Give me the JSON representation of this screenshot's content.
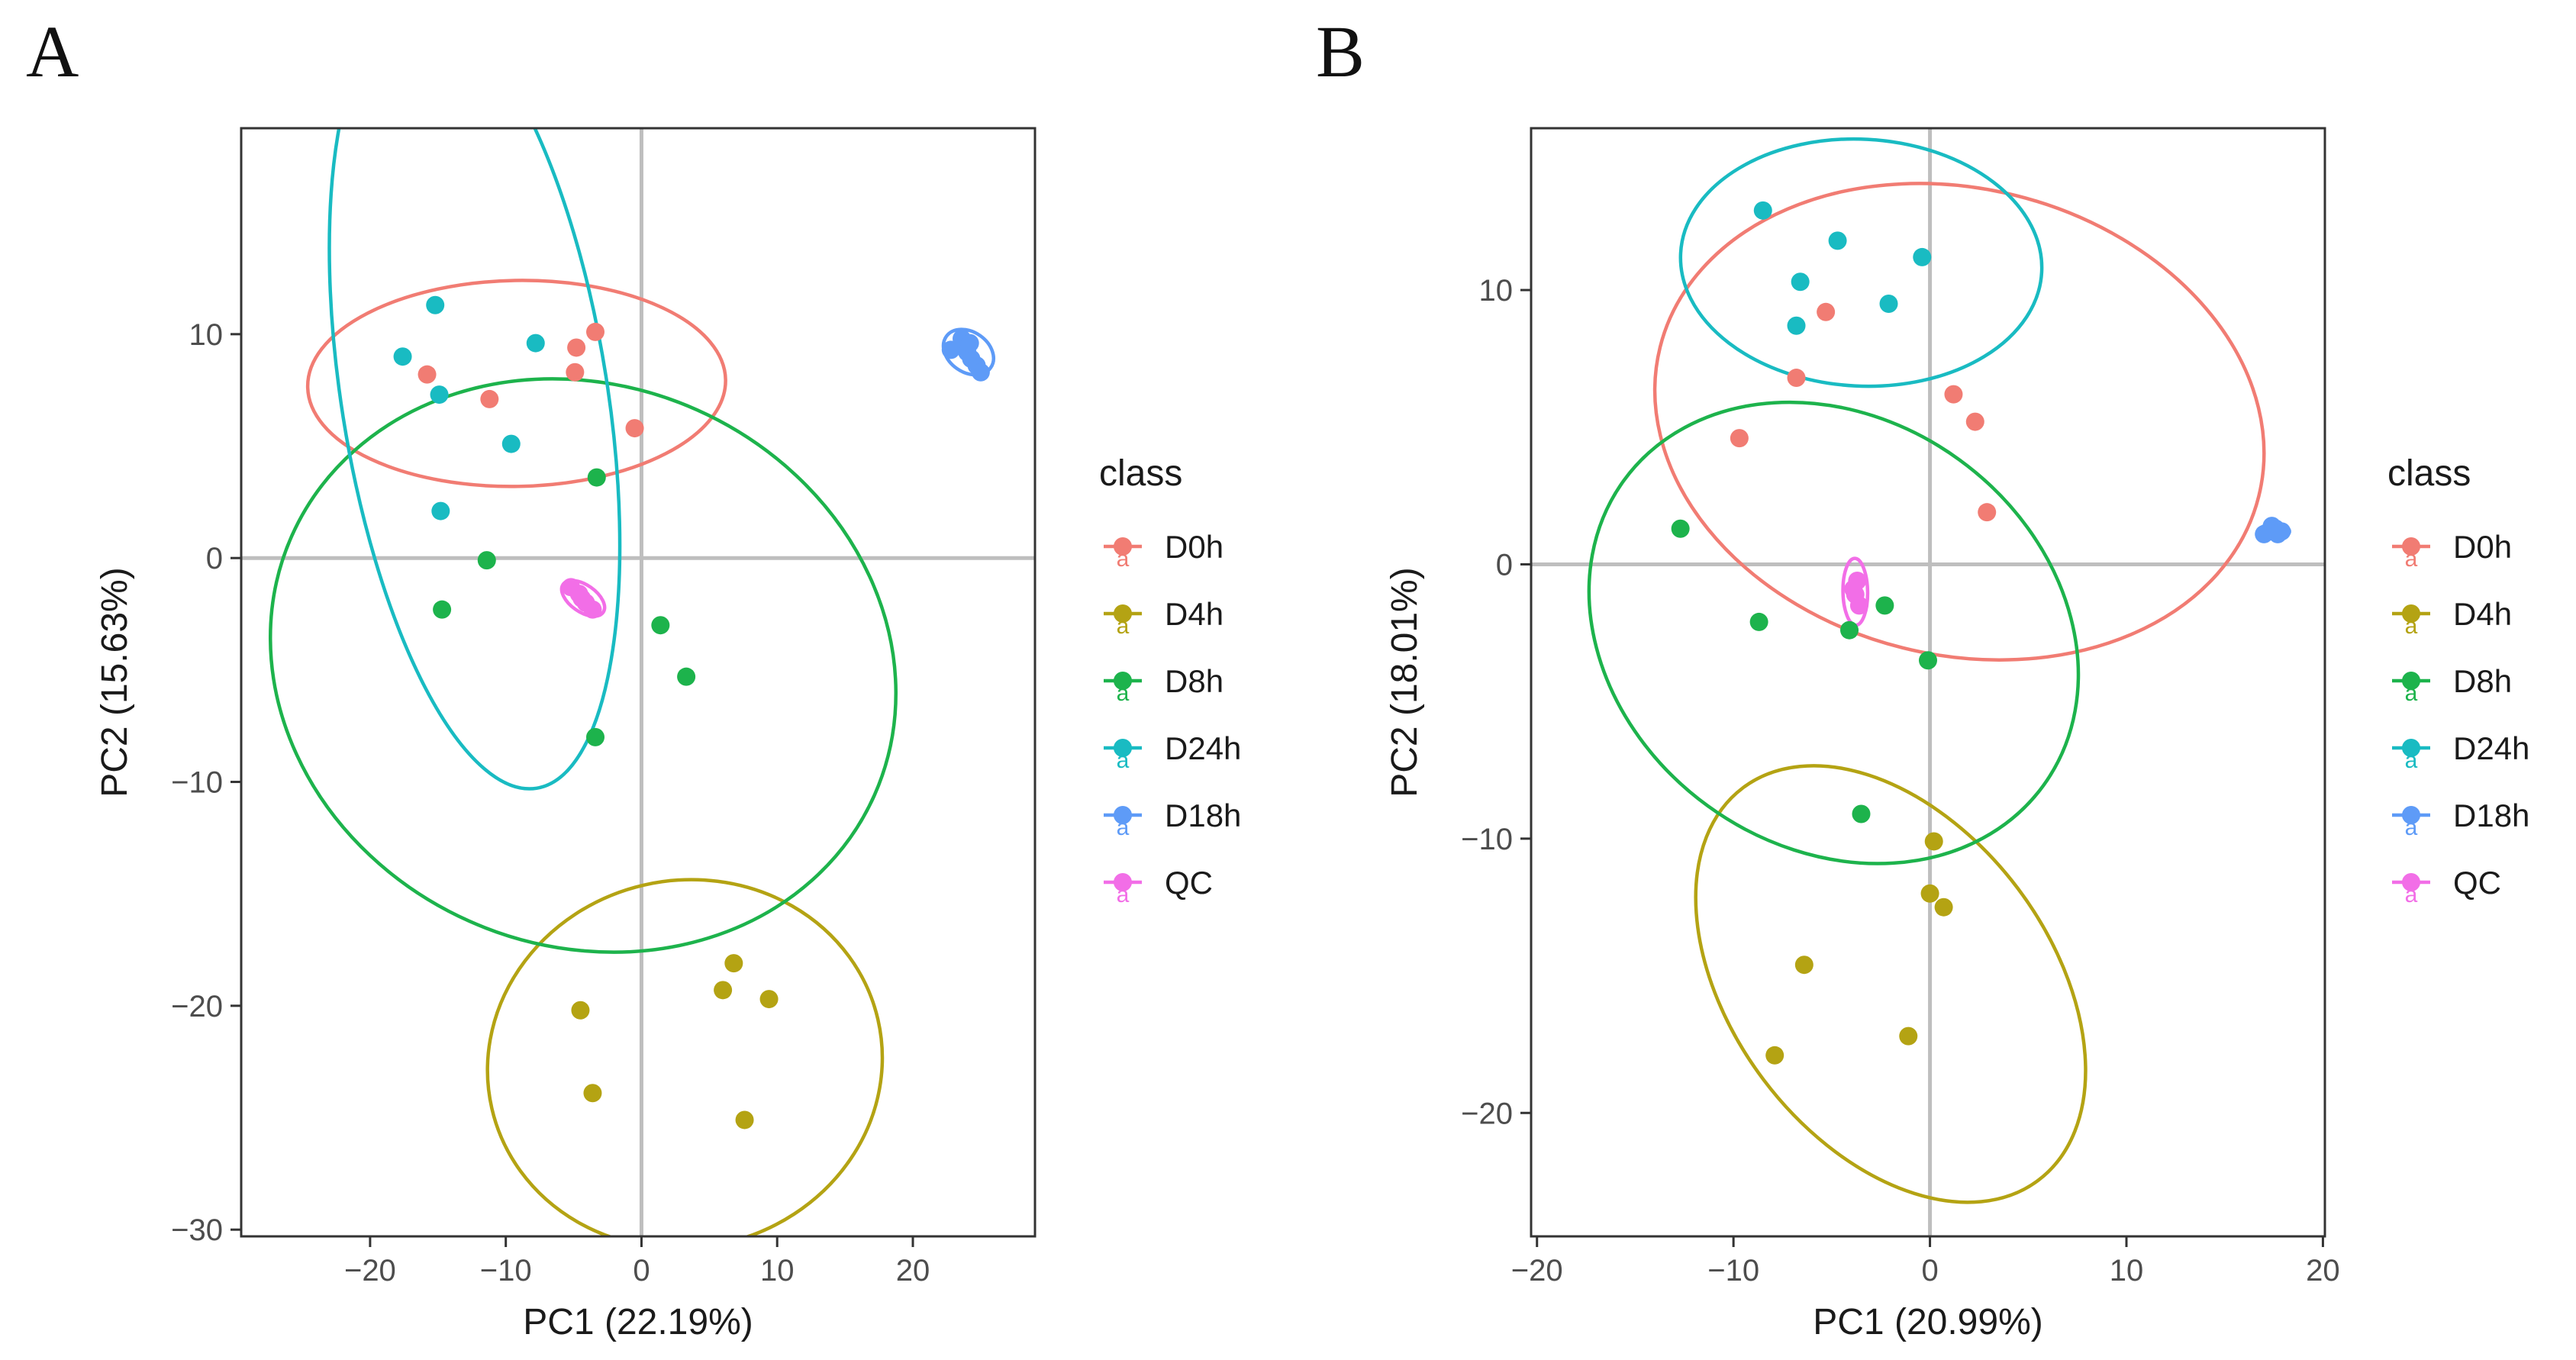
{
  "palette": {
    "D0h": "#F17C73",
    "D4h": "#B4A313",
    "D8h": "#1DB34C",
    "D24h": "#19BBC2",
    "D18h": "#5E9BF7",
    "QC": "#F26EE7",
    "zero_line": "#BEBEBE",
    "frame": "#333333"
  },
  "chart_data": [
    {
      "panel_label": "A",
      "type": "scatter",
      "xlabel": "PC1 (22.19%)",
      "ylabel": "PC2 (15.63%)",
      "xlim": [
        -29.5,
        29
      ],
      "ylim": [
        -30.3,
        19.2
      ],
      "xticks": [
        -20,
        -10,
        0,
        10,
        20
      ],
      "yticks": [
        -30,
        -20,
        -10,
        0,
        10
      ],
      "reference_lines": {
        "x": 0,
        "y": 0
      },
      "legend": {
        "title": "class",
        "position": "right",
        "entries": [
          "D0h",
          "D4h",
          "D8h",
          "D24h",
          "D18h",
          "QC"
        ],
        "key_glyph": "a"
      },
      "series": [
        {
          "name": "D0h",
          "points": [
            [
              -15.8,
              8.2
            ],
            [
              -11.2,
              7.1
            ],
            [
              -4.8,
              9.4
            ],
            [
              -3.4,
              10.1
            ],
            [
              -4.9,
              8.3
            ],
            [
              -0.5,
              5.8
            ]
          ],
          "ellipse": {
            "cx": -9.2,
            "cy": 7.8,
            "rx": 15.4,
            "ry": 4.6,
            "angle": 1
          }
        },
        {
          "name": "D4h",
          "points": [
            [
              -4.5,
              -20.2
            ],
            [
              -3.6,
              -23.9
            ],
            [
              6.8,
              -18.1
            ],
            [
              6.0,
              -19.3
            ],
            [
              9.4,
              -19.7
            ],
            [
              7.6,
              -25.1
            ]
          ],
          "ellipse": {
            "cx": 3.2,
            "cy": -22.6,
            "rx": 14.6,
            "ry": 8.2,
            "angle": 13
          }
        },
        {
          "name": "D8h",
          "points": [
            [
              -3.3,
              3.6
            ],
            [
              -11.4,
              -0.1
            ],
            [
              -14.7,
              -2.3
            ],
            [
              1.4,
              -3.0
            ],
            [
              3.3,
              -5.3
            ],
            [
              -3.4,
              -8.0
            ]
          ],
          "ellipse": {
            "cx": -4.3,
            "cy": -4.8,
            "rx": 23.5,
            "ry": 12.5,
            "angle": -24
          }
        },
        {
          "name": "D24h",
          "points": [
            [
              -15.2,
              11.3
            ],
            [
              -17.6,
              9.0
            ],
            [
              -14.9,
              7.3
            ],
            [
              -7.8,
              9.6
            ],
            [
              -9.6,
              5.1
            ],
            [
              -14.8,
              2.1
            ]
          ],
          "ellipse": {
            "cx": -12.3,
            "cy": 7.2,
            "rx": 9.8,
            "ry": 17.7,
            "angle": 9
          }
        },
        {
          "name": "D18h",
          "points": [
            [
              22.8,
              9.3
            ],
            [
              23.6,
              9.8
            ],
            [
              24.0,
              9.2
            ],
            [
              24.3,
              8.9
            ],
            [
              24.7,
              8.6
            ],
            [
              25.0,
              8.3
            ],
            [
              24.2,
              9.6
            ]
          ],
          "ellipse": {
            "cx": 24.1,
            "cy": 9.2,
            "rx": 2.0,
            "ry": 0.9,
            "angle": -35
          }
        },
        {
          "name": "QC",
          "points": [
            [
              -5.2,
              -1.3
            ],
            [
              -4.6,
              -1.6
            ],
            [
              -4.1,
              -2.0
            ],
            [
              -3.6,
              -2.3
            ],
            [
              -4.4,
              -1.8
            ]
          ],
          "ellipse": {
            "cx": -4.3,
            "cy": -1.8,
            "rx": 1.8,
            "ry": 0.6,
            "angle": -35
          }
        }
      ]
    },
    {
      "panel_label": "B",
      "type": "scatter",
      "xlabel": "PC1 (20.99%)",
      "ylabel": "PC2 (18.01%)",
      "xlim": [
        -20.3,
        20.1
      ],
      "ylim": [
        -24.5,
        15.9
      ],
      "xticks": [
        -20,
        -10,
        0,
        10,
        20
      ],
      "yticks": [
        -20,
        -10,
        0,
        10
      ],
      "reference_lines": {
        "x": 0,
        "y": 0
      },
      "legend": {
        "title": "class",
        "position": "right",
        "entries": [
          "D0h",
          "D4h",
          "D8h",
          "D24h",
          "D18h",
          "QC"
        ],
        "key_glyph": "a"
      },
      "series": [
        {
          "name": "D0h",
          "points": [
            [
              -5.3,
              9.2
            ],
            [
              -6.8,
              6.8
            ],
            [
              -9.7,
              4.6
            ],
            [
              1.2,
              6.2
            ],
            [
              2.3,
              5.2
            ],
            [
              2.9,
              1.9
            ]
          ],
          "ellipse": {
            "cx": 1.5,
            "cy": 5.2,
            "rx": 15.7,
            "ry": 8.5,
            "angle": -14
          }
        },
        {
          "name": "D4h",
          "points": [
            [
              0.2,
              -10.1
            ],
            [
              0.0,
              -12.0
            ],
            [
              0.7,
              -12.5
            ],
            [
              -6.4,
              -14.6
            ],
            [
              -1.1,
              -17.2
            ],
            [
              -7.9,
              -17.9
            ]
          ],
          "ellipse": {
            "cx": -2.0,
            "cy": -15.3,
            "rx": 12.5,
            "ry": 5.8,
            "angle": -53
          }
        },
        {
          "name": "D8h",
          "points": [
            [
              -12.7,
              1.3
            ],
            [
              -8.7,
              -2.1
            ],
            [
              -4.1,
              -2.4
            ],
            [
              -2.3,
              -1.5
            ],
            [
              -0.1,
              -3.5
            ],
            [
              -3.5,
              -9.1
            ]
          ],
          "ellipse": {
            "cx": -4.9,
            "cy": -2.5,
            "rx": 13.2,
            "ry": 7.8,
            "angle": -36
          }
        },
        {
          "name": "D24h",
          "points": [
            [
              -8.5,
              12.9
            ],
            [
              -4.7,
              11.8
            ],
            [
              -6.6,
              10.3
            ],
            [
              -6.8,
              8.7
            ],
            [
              -2.1,
              9.5
            ],
            [
              -0.4,
              11.2
            ]
          ],
          "ellipse": {
            "cx": -3.5,
            "cy": 11.0,
            "rx": 9.2,
            "ry": 4.5,
            "angle": -3
          }
        },
        {
          "name": "D18h",
          "points": [
            [
              17.0,
              1.1
            ],
            [
              17.3,
              1.2
            ],
            [
              17.6,
              1.3
            ],
            [
              17.9,
              1.2
            ],
            [
              17.4,
              1.4
            ],
            [
              17.7,
              1.1
            ]
          ],
          "ellipse": {
            "cx": 17.5,
            "cy": 1.2,
            "rx": 0.8,
            "ry": 0.25,
            "angle": 0
          }
        },
        {
          "name": "QC",
          "points": [
            [
              -3.7,
              -0.6
            ],
            [
              -3.8,
              -1.1
            ],
            [
              -3.6,
              -1.5
            ],
            [
              -3.9,
              -0.9
            ]
          ],
          "ellipse": {
            "cx": -3.8,
            "cy": -1.0,
            "rx": 1.7,
            "ry": 0.45,
            "angle": -89
          }
        }
      ]
    }
  ]
}
